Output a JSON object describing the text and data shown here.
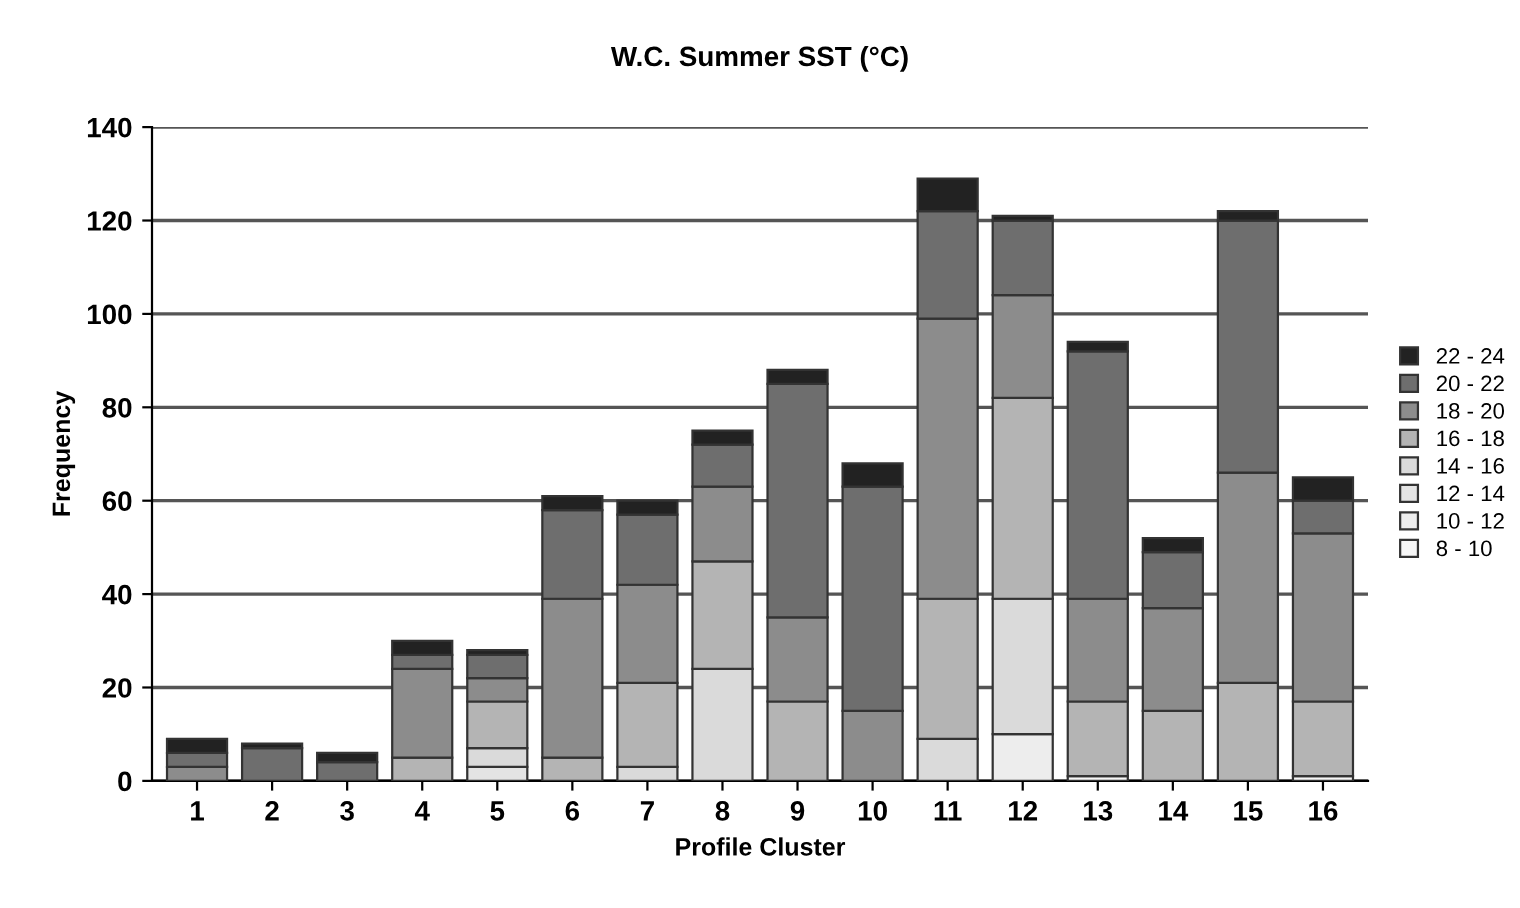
{
  "chart_data": {
    "type": "bar",
    "stacked": true,
    "title": "W.C. Summer SST (°C)",
    "xlabel": "Profile Cluster",
    "ylabel": "Frequency",
    "categories": [
      "1",
      "2",
      "3",
      "4",
      "5",
      "6",
      "7",
      "8",
      "9",
      "10",
      "11",
      "12",
      "13",
      "14",
      "15",
      "16"
    ],
    "series": [
      {
        "name": "8 - 10",
        "color": "#f7f7f7",
        "values": [
          null,
          null,
          null,
          null,
          null,
          null,
          null,
          null,
          null,
          null,
          null,
          null,
          1,
          null,
          null,
          1
        ]
      },
      {
        "name": "10 - 12",
        "color": "#ededed",
        "values": [
          null,
          null,
          null,
          null,
          null,
          null,
          null,
          null,
          null,
          null,
          null,
          10,
          null,
          null,
          null,
          null
        ]
      },
      {
        "name": "12 - 14",
        "color": "#e4e4e4",
        "values": [
          null,
          null,
          null,
          null,
          3,
          null,
          null,
          null,
          null,
          null,
          null,
          null,
          null,
          null,
          null,
          null
        ]
      },
      {
        "name": "14 - 16",
        "color": "#dadada",
        "values": [
          null,
          null,
          null,
          null,
          4,
          null,
          3,
          24,
          null,
          null,
          9,
          29,
          null,
          null,
          null,
          null
        ]
      },
      {
        "name": "16 - 18",
        "color": "#b4b4b4",
        "values": [
          null,
          null,
          null,
          5,
          10,
          5,
          18,
          23,
          17,
          null,
          30,
          43,
          16,
          15,
          21,
          16
        ]
      },
      {
        "name": "18 - 20",
        "color": "#8c8c8c",
        "values": [
          3,
          null,
          null,
          19,
          5,
          34,
          21,
          16,
          18,
          15,
          60,
          22,
          22,
          22,
          45,
          36
        ]
      },
      {
        "name": "20 - 22",
        "color": "#6e6e6e",
        "values": [
          3,
          7,
          4,
          3,
          5,
          19,
          15,
          9,
          50,
          48,
          23,
          16,
          53,
          12,
          54,
          7
        ]
      },
      {
        "name": "22 - 24",
        "color": "#222222",
        "values": [
          3,
          1,
          2,
          3,
          1,
          3,
          3,
          3,
          3,
          5,
          7,
          1,
          2,
          3,
          2,
          5
        ]
      }
    ],
    "ylim": [
      0,
      140
    ],
    "yticks": [
      0,
      20,
      40,
      60,
      80,
      100,
      120,
      140
    ],
    "grid": "y",
    "legend": "right"
  }
}
